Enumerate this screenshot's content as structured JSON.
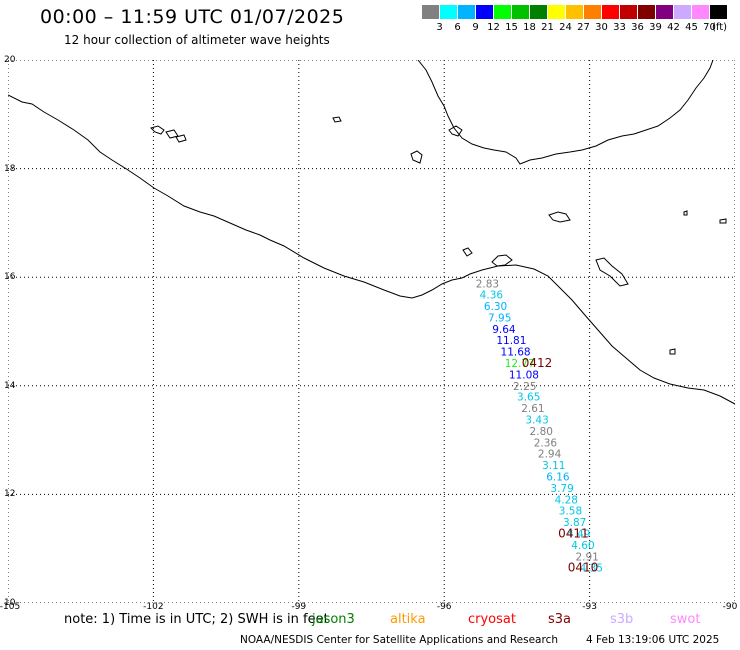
{
  "header": {
    "title": "00:00 – 11:59 UTC 01/07/2025",
    "subtitle": "12 hour collection of altimeter wave heights"
  },
  "legend": {
    "colors": [
      "#808080",
      "#00ffff",
      "#00b4ff",
      "#0000ff",
      "#00ff00",
      "#00c000",
      "#008000",
      "#ffff00",
      "#ffc000",
      "#ff8000",
      "#ff0000",
      "#c00000",
      "#800000",
      "#800080",
      "#ccaaff",
      "#ff88ff",
      "#000000"
    ],
    "labels": [
      "3",
      "6",
      "9",
      "12",
      "15",
      "18",
      "21",
      "24",
      "27",
      "30",
      "33",
      "36",
      "39",
      "42",
      "45",
      "70"
    ],
    "unit": "(ft)"
  },
  "axes": {
    "y_labels": [
      "20",
      "18",
      "16",
      "14",
      "12",
      "10"
    ],
    "x_labels": [
      "-105",
      "-102",
      "-99",
      "-96",
      "-93",
      "-90"
    ],
    "lon_range": [
      -105,
      -90
    ],
    "lat_range": [
      10,
      20
    ],
    "grid": "dotted"
  },
  "observations": [
    {
      "lat": 15.88,
      "value": "2.83",
      "color": "#808080"
    },
    {
      "lat": 15.68,
      "value": "4.36",
      "color": "#00c8e8"
    },
    {
      "lat": 15.47,
      "value": "6.30",
      "color": "#00b4ff"
    },
    {
      "lat": 15.26,
      "value": "7.95",
      "color": "#00b4ff"
    },
    {
      "lat": 15.05,
      "value": "9.64",
      "color": "#0000ff"
    },
    {
      "lat": 14.84,
      "value": "11.81",
      "color": "#0000ff"
    },
    {
      "lat": 14.63,
      "value": "11.68",
      "color": "#0000ff"
    },
    {
      "lat": 14.42,
      "value": "12.77",
      "color": "#22ee22"
    },
    {
      "lat": 14.21,
      "value": "11.08",
      "color": "#0000ff"
    },
    {
      "lat": 14.0,
      "value": "2.25",
      "color": "#808080"
    },
    {
      "lat": 13.8,
      "value": "3.65",
      "color": "#00c8e8"
    },
    {
      "lat": 13.59,
      "value": "2.61",
      "color": "#808080"
    },
    {
      "lat": 13.38,
      "value": "3.43",
      "color": "#00c8e8"
    },
    {
      "lat": 13.17,
      "value": "2.80",
      "color": "#808080"
    },
    {
      "lat": 12.96,
      "value": "2.36",
      "color": "#808080"
    },
    {
      "lat": 12.75,
      "value": "2.94",
      "color": "#808080"
    },
    {
      "lat": 12.54,
      "value": "3.11",
      "color": "#00c8e8"
    },
    {
      "lat": 12.33,
      "value": "6.16",
      "color": "#00b4ff"
    },
    {
      "lat": 12.12,
      "value": "3.79",
      "color": "#00c8e8"
    },
    {
      "lat": 11.91,
      "value": "4.28",
      "color": "#00c8e8"
    },
    {
      "lat": 11.7,
      "value": "3.58",
      "color": "#00c8e8"
    },
    {
      "lat": 11.49,
      "value": "3.87",
      "color": "#00c8e8"
    },
    {
      "lat": 11.28,
      "value": "4.49",
      "color": "#00c8e8"
    },
    {
      "lat": 11.07,
      "value": "4.60",
      "color": "#00c8e8"
    },
    {
      "lat": 10.86,
      "value": "2.91",
      "color": "#808080"
    },
    {
      "lat": 10.65,
      "value": "4.35",
      "color": "#00c8e8"
    }
  ],
  "pass_labels": [
    {
      "text": "0412"
    },
    {
      "text": "0411"
    },
    {
      "text": "0410"
    }
  ],
  "footer": {
    "note": "note:  1) Time is in UTC;  2) SWH is in feet",
    "satellites": [
      {
        "name": "jason3",
        "color": "#008000"
      },
      {
        "name": "altika",
        "color": "#ff9900"
      },
      {
        "name": "cryosat",
        "color": "#ff0000"
      },
      {
        "name": "s3a",
        "color": "#800000"
      },
      {
        "name": "s3b",
        "color": "#ccaaff"
      },
      {
        "name": "swot",
        "color": "#ff88ff"
      }
    ],
    "credit": "NOAA/NESDIS Center for Satellite Applications and Research",
    "timestamp": "4 Feb 13:19:06 UTC 2025"
  }
}
